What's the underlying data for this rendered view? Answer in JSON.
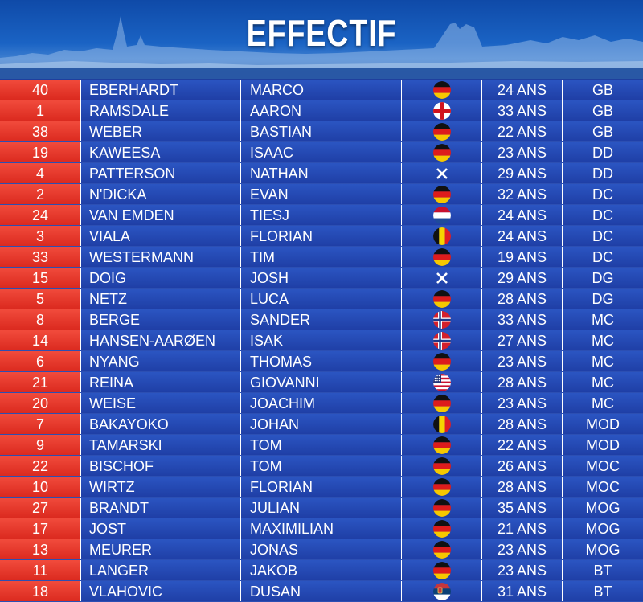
{
  "title": "EFFECTIF",
  "players": [
    {
      "number": "40",
      "last_name": "EBERHARDT",
      "first_name": "MARCO",
      "flag": "germany-flag-icon",
      "age": "24 ANS",
      "position": "GB"
    },
    {
      "number": "1",
      "last_name": "RAMSDALE",
      "first_name": "AARON",
      "flag": "england-flag-icon",
      "age": "33 ANS",
      "position": "GB"
    },
    {
      "number": "38",
      "last_name": "WEBER",
      "first_name": "BASTIAN",
      "flag": "germany-flag-icon",
      "age": "22 ANS",
      "position": "GB"
    },
    {
      "number": "19",
      "last_name": "KAWEESA",
      "first_name": "ISAAC",
      "flag": "germany-flag-icon",
      "age": "23 ANS",
      "position": "DD"
    },
    {
      "number": "4",
      "last_name": "PATTERSON",
      "first_name": "NATHAN",
      "flag": "scotland-flag-icon",
      "age": "29 ANS",
      "position": "DD"
    },
    {
      "number": "2",
      "last_name": "N'DICKA",
      "first_name": "EVAN",
      "flag": "germany-flag-icon",
      "age": "32 ANS",
      "position": "DC"
    },
    {
      "number": "24",
      "last_name": "VAN EMDEN",
      "first_name": "TIESJ",
      "flag": "netherlands-flag-icon",
      "age": "24 ANS",
      "position": "DC"
    },
    {
      "number": "3",
      "last_name": "VIALA",
      "first_name": "FLORIAN",
      "flag": "belgium-flag-icon",
      "age": "24 ANS",
      "position": "DC"
    },
    {
      "number": "33",
      "last_name": "WESTERMANN",
      "first_name": "TIM",
      "flag": "germany-flag-icon",
      "age": "19 ANS",
      "position": "DC"
    },
    {
      "number": "15",
      "last_name": "DOIG",
      "first_name": "JOSH",
      "flag": "scotland-flag-icon",
      "age": "29 ANS",
      "position": "DG"
    },
    {
      "number": "5",
      "last_name": "NETZ",
      "first_name": "LUCA",
      "flag": "germany-flag-icon",
      "age": "28 ANS",
      "position": "DG"
    },
    {
      "number": "8",
      "last_name": "BERGE",
      "first_name": "SANDER",
      "flag": "norway-flag-icon",
      "age": "33 ANS",
      "position": "MC"
    },
    {
      "number": "14",
      "last_name": "HANSEN-AARØEN",
      "first_name": "ISAK",
      "flag": "norway-flag-icon",
      "age": "27 ANS",
      "position": "MC"
    },
    {
      "number": "6",
      "last_name": "NYANG",
      "first_name": "THOMAS",
      "flag": "germany-flag-icon",
      "age": "23 ANS",
      "position": "MC"
    },
    {
      "number": "21",
      "last_name": "REINA",
      "first_name": "GIOVANNI",
      "flag": "usa-flag-icon",
      "age": "28 ANS",
      "position": "MC"
    },
    {
      "number": "20",
      "last_name": "WEISE",
      "first_name": "JOACHIM",
      "flag": "germany-flag-icon",
      "age": "23 ANS",
      "position": "MC"
    },
    {
      "number": "7",
      "last_name": "BAKAYOKO",
      "first_name": "JOHAN",
      "flag": "belgium-flag-icon",
      "age": "28 ANS",
      "position": "MOD"
    },
    {
      "number": "9",
      "last_name": "TAMARSKI",
      "first_name": "TOM",
      "flag": "germany-flag-icon",
      "age": "22 ANS",
      "position": "MOD"
    },
    {
      "number": "22",
      "last_name": "BISCHOF",
      "first_name": "TOM",
      "flag": "germany-flag-icon",
      "age": "26 ANS",
      "position": "MOC"
    },
    {
      "number": "10",
      "last_name": "WIRTZ",
      "first_name": "FLORIAN",
      "flag": "germany-flag-icon",
      "age": "28 ANS",
      "position": "MOC"
    },
    {
      "number": "27",
      "last_name": "BRANDT",
      "first_name": "JULIAN",
      "flag": "germany-flag-icon",
      "age": "35 ANS",
      "position": "MOG"
    },
    {
      "number": "17",
      "last_name": "JOST",
      "first_name": "MAXIMILIAN",
      "flag": "germany-flag-icon",
      "age": "21 ANS",
      "position": "MOG"
    },
    {
      "number": "13",
      "last_name": "MEURER",
      "first_name": "JONAS",
      "flag": "germany-flag-icon",
      "age": "23 ANS",
      "position": "MOG"
    },
    {
      "number": "11",
      "last_name": "LANGER",
      "first_name": "JAKOB",
      "flag": "germany-flag-icon",
      "age": "23 ANS",
      "position": "BT"
    },
    {
      "number": "18",
      "last_name": "VLAHOVIC",
      "first_name": "DUSAN",
      "flag": "serbia-flag-icon",
      "age": "31 ANS",
      "position": "BT"
    }
  ],
  "colors": {
    "number_cell": "#e33a2c",
    "data_cell": "#2448b4",
    "header_sky": "#1a63c4",
    "text": "#ffffff"
  }
}
